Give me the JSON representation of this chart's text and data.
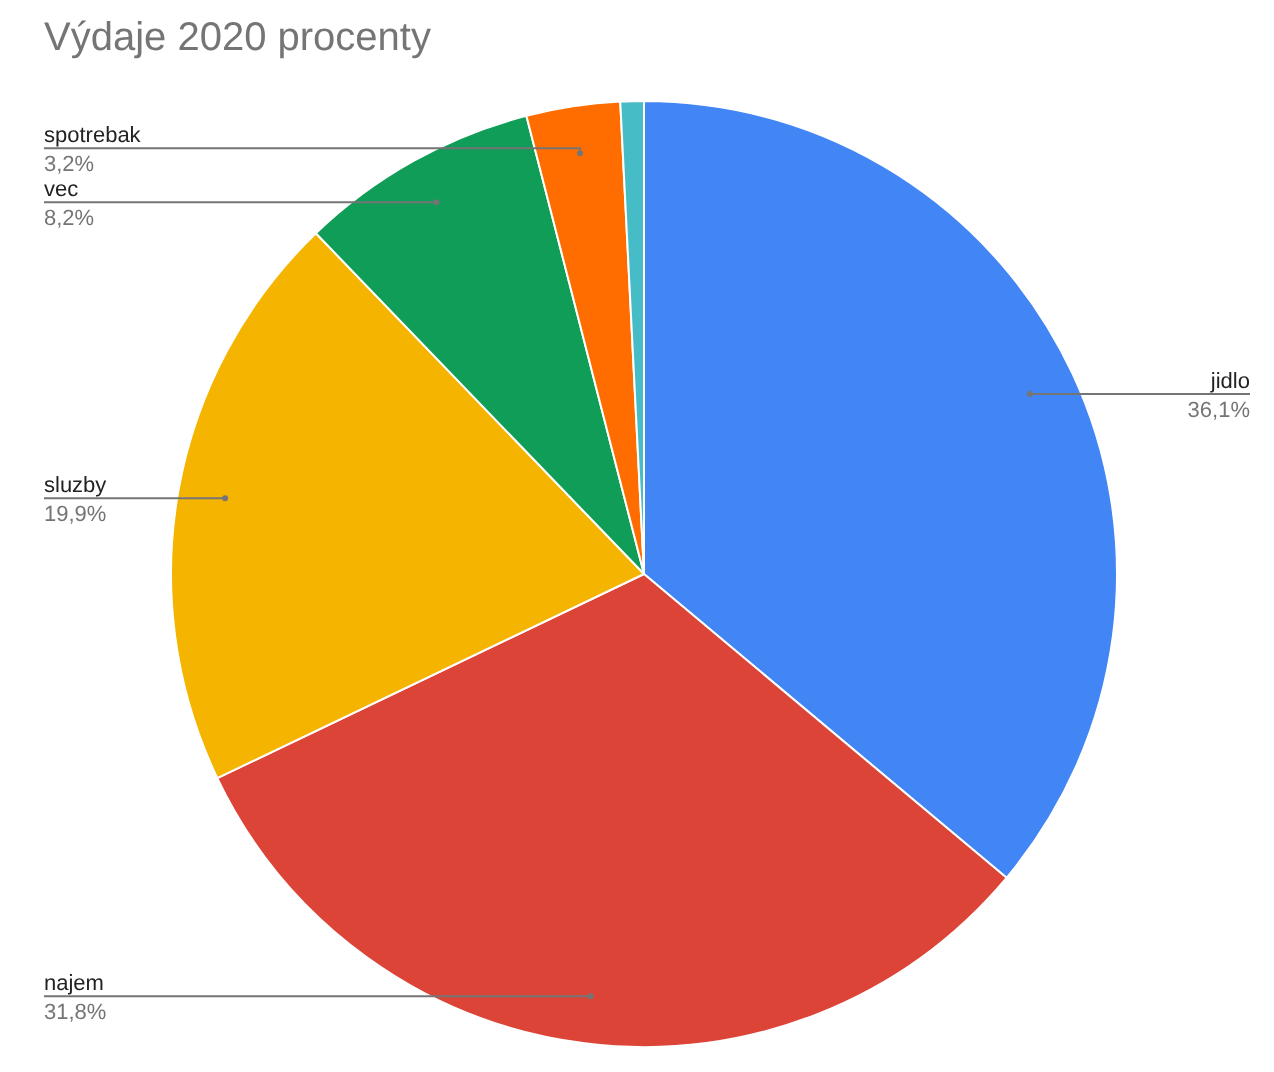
{
  "chart_data": {
    "type": "pie",
    "title": "Výdaje 2020 procenty",
    "categories": [
      "jidlo",
      "najem",
      "sluzby",
      "vec",
      "spotrebak",
      null
    ],
    "values": [
      36.1,
      31.8,
      19.9,
      8.2,
      3.2,
      0.8
    ],
    "colors": [
      "#4285f4",
      "#db4437",
      "#f4b400",
      "#0f9d58",
      "#ff6d01",
      "#46bdc6"
    ],
    "value_labels": [
      "36,1%",
      "31,8%",
      "19,9%",
      "8,2%",
      "3,2%",
      null
    ],
    "legend": false
  }
}
